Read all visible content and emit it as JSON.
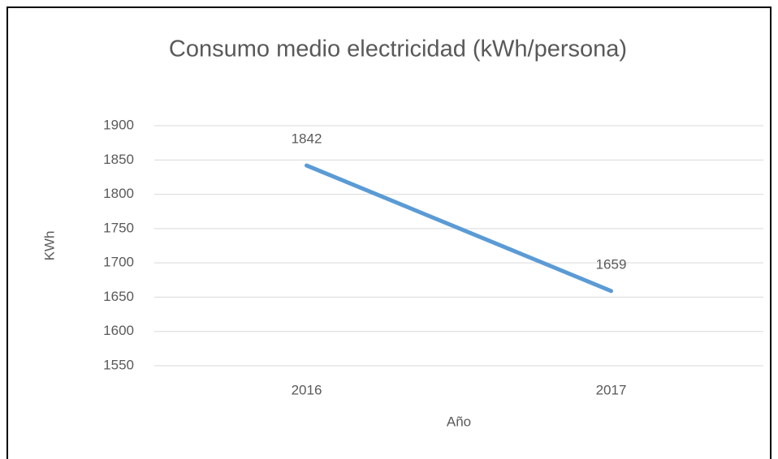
{
  "chart_data": {
    "type": "line",
    "title": "Consumo medio electricidad (kWh/persona)",
    "x_label": "Año",
    "y_label": "KWh",
    "categories": [
      "2016",
      "2017"
    ],
    "series": [
      {
        "name": "Consumo",
        "color": "#5b9bd5",
        "values": [
          1842,
          1659
        ]
      }
    ],
    "ylim": [
      1550,
      1900
    ],
    "yticks": [
      1550,
      1600,
      1650,
      1700,
      1750,
      1800,
      1850,
      1900
    ],
    "grid": true,
    "data_labels": true
  }
}
